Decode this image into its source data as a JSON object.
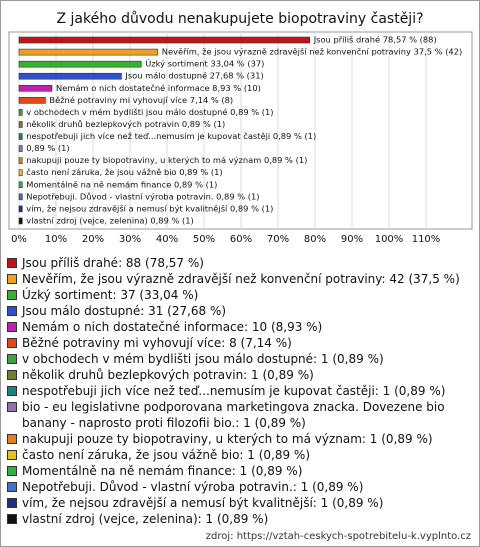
{
  "chart_data": {
    "type": "bar",
    "orientation": "horizontal",
    "title": "Z jakého důvodu nenakupujete biopotraviny častěji?",
    "values": [
      78.57,
      37.5,
      33.04,
      27.68,
      8.93,
      7.14,
      0.89,
      0.89,
      0.89,
      0.89,
      0.89,
      0.89,
      0.89,
      0.89,
      0.89,
      0.89
    ],
    "value_labels": [
      "Jsou příliš drahé 78,57 % (88)",
      "Nevěřím, že jsou výrazně zdravější než konvenční potraviny 37,5 % (42)",
      "Úzký sortiment 33,04 % (37)",
      "Jsou málo dostupné 27,68 % (31)",
      "Nemám o nich dostatečné informace 8,93 % (10)",
      "Běžné potraviny mi vyhovují více 7,14 % (8)",
      "v obchodech v mém bydlišti jsou málo dostupné 0,89 % (1)",
      "několik druhů bezlepkových potravin 0,89 % (1)",
      "nespotřebuji jich více než teď...nemusím je kupovat častěji 0,89 % (1)",
      "0,89 % (1)",
      "nakupuji pouze ty biopotraviny, u kterých to má význam 0,89 % (1)",
      "často není záruka, že jsou vážně bio 0,89 % (1)",
      "Momentálně na ně nemám finance 0,89 % (1)",
      "Nepotřebuji. Důvod - vlastní výroba potravin. 0,89 % (1)",
      "vím, že nejsou zdravější a nemusí být kvalitnější 0,89 % (1)",
      "vlastní zdroj (vejce, zelenina) 0,89 % (1)"
    ],
    "legend": [
      "Jsou příliš drahé: 88 (78,57 %)",
      "Nevěřím, že jsou výrazně zdravější než konvenční potraviny: 42 (37,5 %)",
      "Úzký sortiment: 37 (33,04 %)",
      "Jsou málo dostupné: 31 (27,68 %)",
      "Nemám o nich dostatečné informace: 10 (8,93 %)",
      "Běžné potraviny mi vyhovují více: 8 (7,14 %)",
      "v obchodech v mém bydlišti jsou málo dostupné: 1 (0,89 %)",
      "několik druhů bezlepkových potravin: 1 (0,89 %)",
      "nespotřebuji jich více než teď...nemusím je kupovat častěji: 1 (0,89 %)",
      "bio - eu legislativne podporovana marketingova znacka. Dovezene bio banany - naprosto proti filozofii bio.: 1 (0,89 %)",
      "nakupuji pouze ty biopotraviny, u kterých to má význam: 1 (0,89 %)",
      "často není záruka, že jsou vážně bio: 1 (0,89 %)",
      "Momentálně na ně nemám finance: 1 (0,89 %)",
      "Nepotřebuji. Důvod - vlastní výroba potravin.: 1 (0,89 %)",
      "vím, že nejsou zdravější a nemusí být kvalitnější: 1 (0,89 %)",
      "vlastní zdroj (vejce, zelenina): 1 (0,89 %)"
    ],
    "colors": [
      "#c0141c",
      "#f0a020",
      "#38b030",
      "#3050c8",
      "#c020b0",
      "#e04818",
      "#40a040",
      "#708030",
      "#208080",
      "#9070b0",
      "#e08020",
      "#e8c020",
      "#30b040",
      "#4070d0",
      "#203080",
      "#101010"
    ],
    "xlim": [
      0,
      120
    ],
    "xticks": [
      {
        "value": 0,
        "label": "0%"
      },
      {
        "value": 10,
        "label": "10%"
      },
      {
        "value": 20,
        "label": "20%"
      },
      {
        "value": 30,
        "label": "30%"
      },
      {
        "value": 40,
        "label": "40%"
      },
      {
        "value": 50,
        "label": "50%"
      },
      {
        "value": 60,
        "label": "60%"
      },
      {
        "value": 70,
        "label": "70%"
      },
      {
        "value": 80,
        "label": "80%"
      },
      {
        "value": 90,
        "label": "90%"
      },
      {
        "value": 100,
        "label": "100%"
      },
      {
        "value": 110,
        "label": "110%"
      }
    ],
    "grid": true,
    "source": "zdroj: https://vztah-ceskych-spotrebitelu-k.vyplnto.cz"
  }
}
